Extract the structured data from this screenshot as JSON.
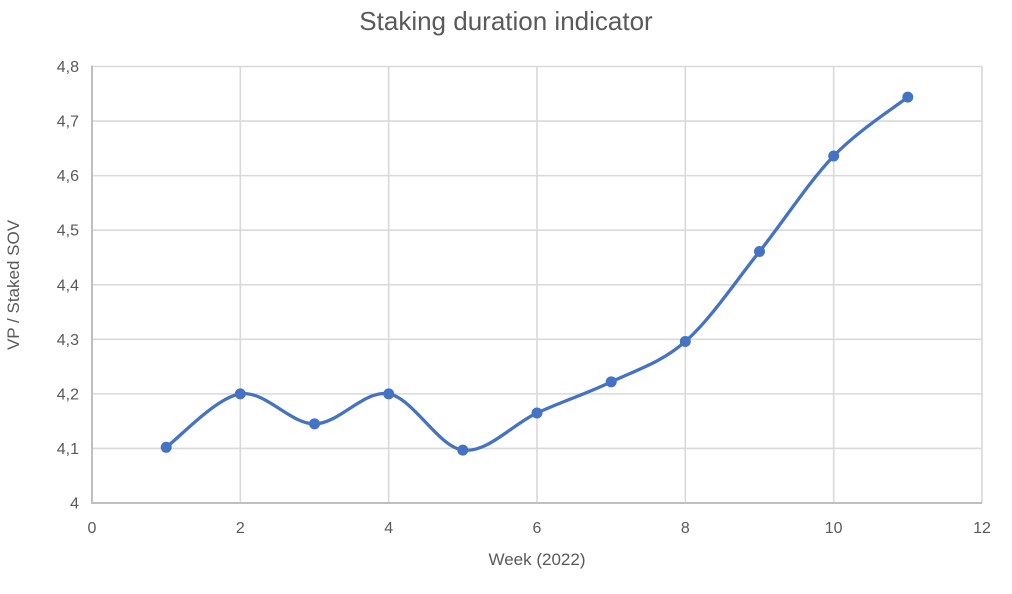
{
  "chart_data": {
    "type": "line",
    "title": "Staking duration indicator",
    "xlabel": "Week (2022)",
    "ylabel": "VP / Staked SOV",
    "x": [
      1,
      2,
      3,
      4,
      5,
      6,
      7,
      8,
      9,
      10,
      11
    ],
    "values": [
      4.102,
      4.2,
      4.145,
      4.2,
      4.097,
      4.165,
      4.222,
      4.296,
      4.461,
      4.636,
      4.744
    ],
    "xlim": [
      0,
      12
    ],
    "ylim": [
      4.0,
      4.8
    ],
    "x_ticks": [
      {
        "value": 0,
        "label": "0"
      },
      {
        "value": 2,
        "label": "2"
      },
      {
        "value": 4,
        "label": "4"
      },
      {
        "value": 6,
        "label": "6"
      },
      {
        "value": 8,
        "label": "8"
      },
      {
        "value": 10,
        "label": "10"
      },
      {
        "value": 12,
        "label": "12"
      }
    ],
    "y_ticks": [
      {
        "value": 4.0,
        "label": "4"
      },
      {
        "value": 4.1,
        "label": "4,1"
      },
      {
        "value": 4.2,
        "label": "4,2"
      },
      {
        "value": 4.3,
        "label": "4,3"
      },
      {
        "value": 4.4,
        "label": "4,4"
      },
      {
        "value": 4.5,
        "label": "4,5"
      },
      {
        "value": 4.6,
        "label": "4,6"
      },
      {
        "value": 4.7,
        "label": "4,7"
      },
      {
        "value": 4.8,
        "label": "4,8"
      }
    ],
    "grid": true,
    "legend": false,
    "smooth": true,
    "marker": "circle",
    "colors": {
      "series": "#4472C4",
      "title_text": "#595959",
      "axis_text": "#595959",
      "gridline": "#D9D9D9",
      "axis_line": "#BFBFBF",
      "background": "#FFFFFF"
    }
  }
}
